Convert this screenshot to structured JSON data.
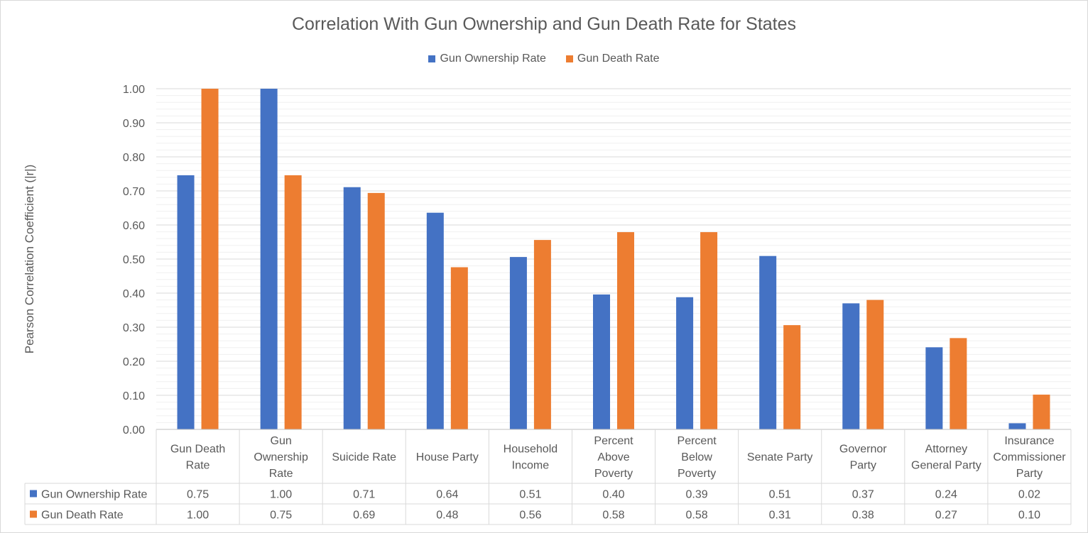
{
  "chart_data": {
    "type": "bar",
    "title": "Correlation With Gun Ownership and Gun Death Rate for States",
    "ylabel": "Pearson Correlation Coefficient (|r|)",
    "xlabel": "",
    "ylim": [
      0,
      1
    ],
    "y_tick_labels": [
      "0.00",
      "0.10",
      "0.20",
      "0.30",
      "0.40",
      "0.50",
      "0.60",
      "0.70",
      "0.80",
      "0.90",
      "1.00"
    ],
    "grid": true,
    "legend_position": "top",
    "categories": [
      [
        "Gun Death",
        "Rate"
      ],
      [
        "Gun",
        "Ownership",
        "Rate"
      ],
      [
        "Suicide Rate"
      ],
      [
        "House Party"
      ],
      [
        "Household",
        "Income"
      ],
      [
        "Percent",
        "Above",
        "Poverty"
      ],
      [
        "Percent",
        "Below",
        "Poverty"
      ],
      [
        "Senate Party"
      ],
      [
        "Governor",
        "Party"
      ],
      [
        "Attorney",
        "General Party"
      ],
      [
        "Insurance",
        "Commissioner",
        "Party"
      ]
    ],
    "series": [
      {
        "name": "Gun Ownership Rate",
        "color": "#4472c4",
        "values": [
          0.746,
          1.0,
          0.711,
          0.636,
          0.506,
          0.396,
          0.388,
          0.509,
          0.37,
          0.241,
          0.018
        ],
        "table_labels": [
          "0.75",
          "1.00",
          "0.71",
          "0.64",
          "0.51",
          "0.40",
          "0.39",
          "0.51",
          "0.37",
          "0.24",
          "0.02"
        ]
      },
      {
        "name": "Gun Death Rate",
        "color": "#ed7d31",
        "values": [
          1.0,
          0.746,
          0.694,
          0.476,
          0.556,
          0.579,
          0.579,
          0.306,
          0.38,
          0.268,
          0.102
        ],
        "table_labels": [
          "1.00",
          "0.75",
          "0.69",
          "0.48",
          "0.56",
          "0.58",
          "0.58",
          "0.31",
          "0.38",
          "0.27",
          "0.10"
        ]
      }
    ]
  }
}
